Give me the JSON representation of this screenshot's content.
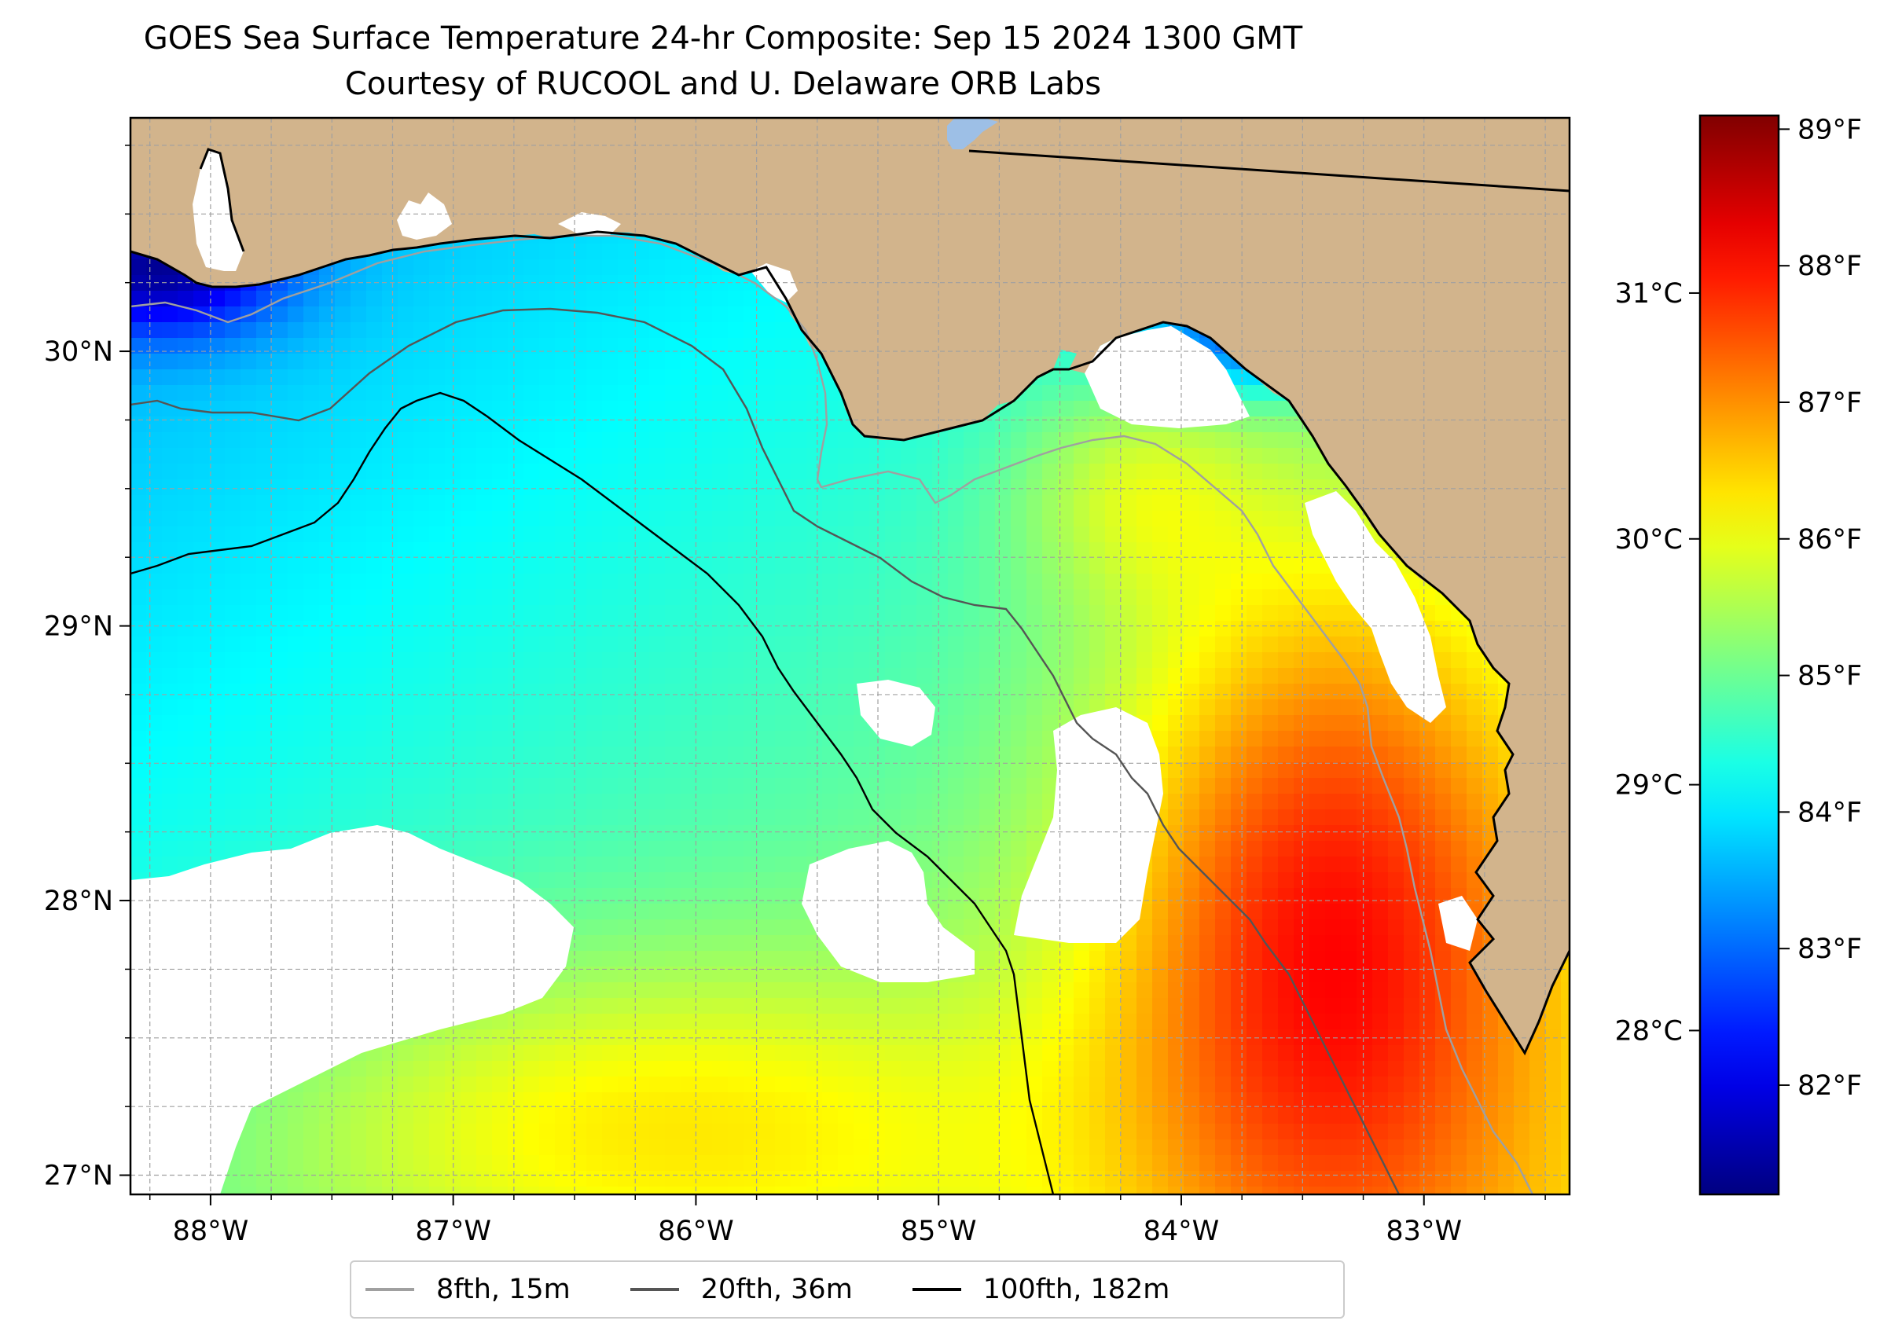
{
  "title": "GOES Sea Surface Temperature 24-hr Composite: Sep 15 2024 1300 GMT",
  "subtitle": "Courtesy of RUCOOL and U. Delaware ORB Labs",
  "map": {
    "lon_range": [
      -88.33,
      -82.4
    ],
    "lat_range": [
      26.93,
      30.85
    ],
    "lon_ticks": [
      {
        "value": -88,
        "label": "88°W"
      },
      {
        "value": -87,
        "label": "87°W"
      },
      {
        "value": -86,
        "label": "86°W"
      },
      {
        "value": -85,
        "label": "85°W"
      },
      {
        "value": -84,
        "label": "84°W"
      },
      {
        "value": -83,
        "label": "83°W"
      }
    ],
    "lat_ticks": [
      {
        "value": 27,
        "label": "27°N"
      },
      {
        "value": 28,
        "label": "28°N"
      },
      {
        "value": 29,
        "label": "29°N"
      },
      {
        "value": 30,
        "label": "30°N"
      }
    ],
    "colors": {
      "land": "#d2b48c",
      "nodata": "#ffffff",
      "grid": "#a0a0a0",
      "lake": "#9dbfe6"
    }
  },
  "colorbar": {
    "colormap": "jet",
    "range_f": [
      81.2,
      89.1
    ],
    "f_ticks": [
      {
        "value": 82,
        "label": "82°F"
      },
      {
        "value": 83,
        "label": "83°F"
      },
      {
        "value": 84,
        "label": "84°F"
      },
      {
        "value": 85,
        "label": "85°F"
      },
      {
        "value": 86,
        "label": "86°F"
      },
      {
        "value": 87,
        "label": "87°F"
      },
      {
        "value": 88,
        "label": "88°F"
      },
      {
        "value": 89,
        "label": "89°F"
      }
    ],
    "c_ticks": [
      {
        "value": 28,
        "label": "28°C"
      },
      {
        "value": 29,
        "label": "29°C"
      },
      {
        "value": 30,
        "label": "30°C"
      },
      {
        "value": 31,
        "label": "31°C"
      }
    ]
  },
  "legend": {
    "items": [
      {
        "label": "8fth, 15m",
        "color": "#a0a0a0"
      },
      {
        "label": "20fth, 36m",
        "color": "#555555"
      },
      {
        "label": "100fth, 182m",
        "color": "#000000"
      }
    ]
  }
}
